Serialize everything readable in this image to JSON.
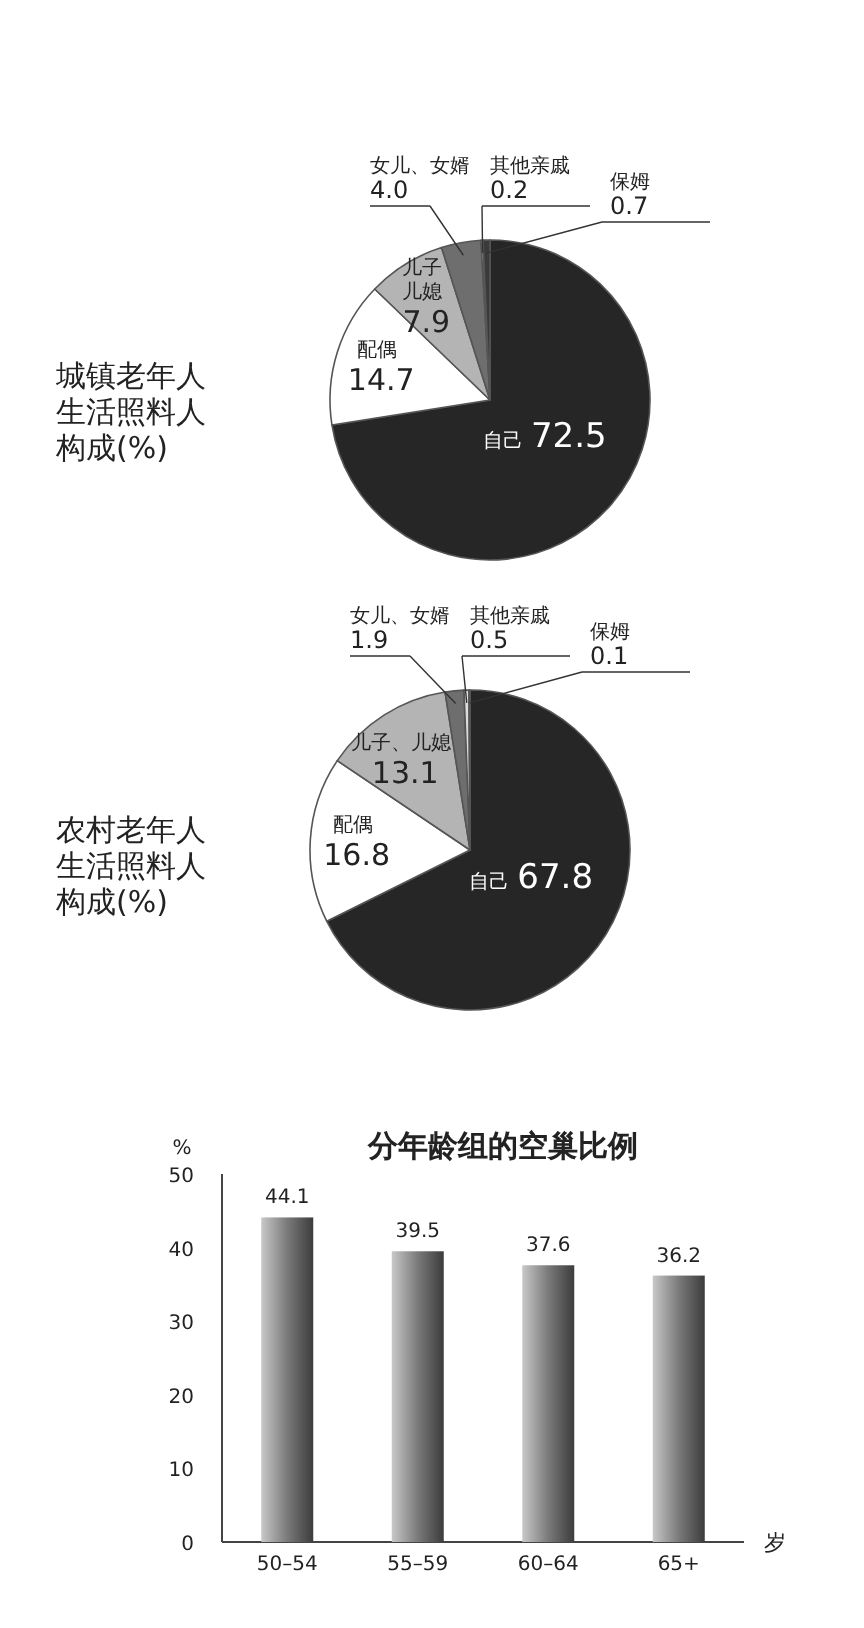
{
  "chart_data": [
    {
      "type": "pie",
      "title": "城镇老年人生活照料人构成(%)",
      "categories": [
        "自己",
        "配偶",
        "儿子儿媳",
        "女儿、女婿",
        "其他亲戚",
        "保姆"
      ],
      "values": [
        72.5,
        14.7,
        7.9,
        4.0,
        0.2,
        0.7
      ],
      "value_labels": [
        "72.5",
        "14.7",
        "7.9",
        "4.0",
        "0.2",
        "0.7"
      ],
      "colors": [
        "#262626",
        "#ffffff",
        "#b4b4b4",
        "#6e6e6e",
        "#dcdcdc",
        "#3a3a3a"
      ],
      "data_labels": true
    },
    {
      "type": "pie",
      "title": "农村老年人生活照料人构成(%)",
      "categories": [
        "自己",
        "配偶",
        "儿子、儿媳",
        "女儿、女婿",
        "其他亲戚",
        "保姆"
      ],
      "values": [
        67.8,
        16.8,
        13.1,
        1.9,
        0.5,
        0.1
      ],
      "colors": [
        "#262626",
        "#ffffff",
        "#b4b4b4",
        "#6e6e6e",
        "#dcdcdc",
        "#3a3a3a"
      ],
      "data_labels": true
    },
    {
      "type": "bar",
      "title": "分年龄组的空巢比例",
      "ylabel": "%",
      "xlabel": "岁",
      "categories": [
        "50–54",
        "55–59",
        "60–64",
        "65+"
      ],
      "values": [
        44.1,
        39.5,
        37.6,
        36.2
      ],
      "color": "#7a7a7a",
      "ylim": [
        0,
        50
      ],
      "yticks": [
        0,
        10,
        20,
        30,
        40,
        50
      ],
      "data_labels": true
    }
  ]
}
